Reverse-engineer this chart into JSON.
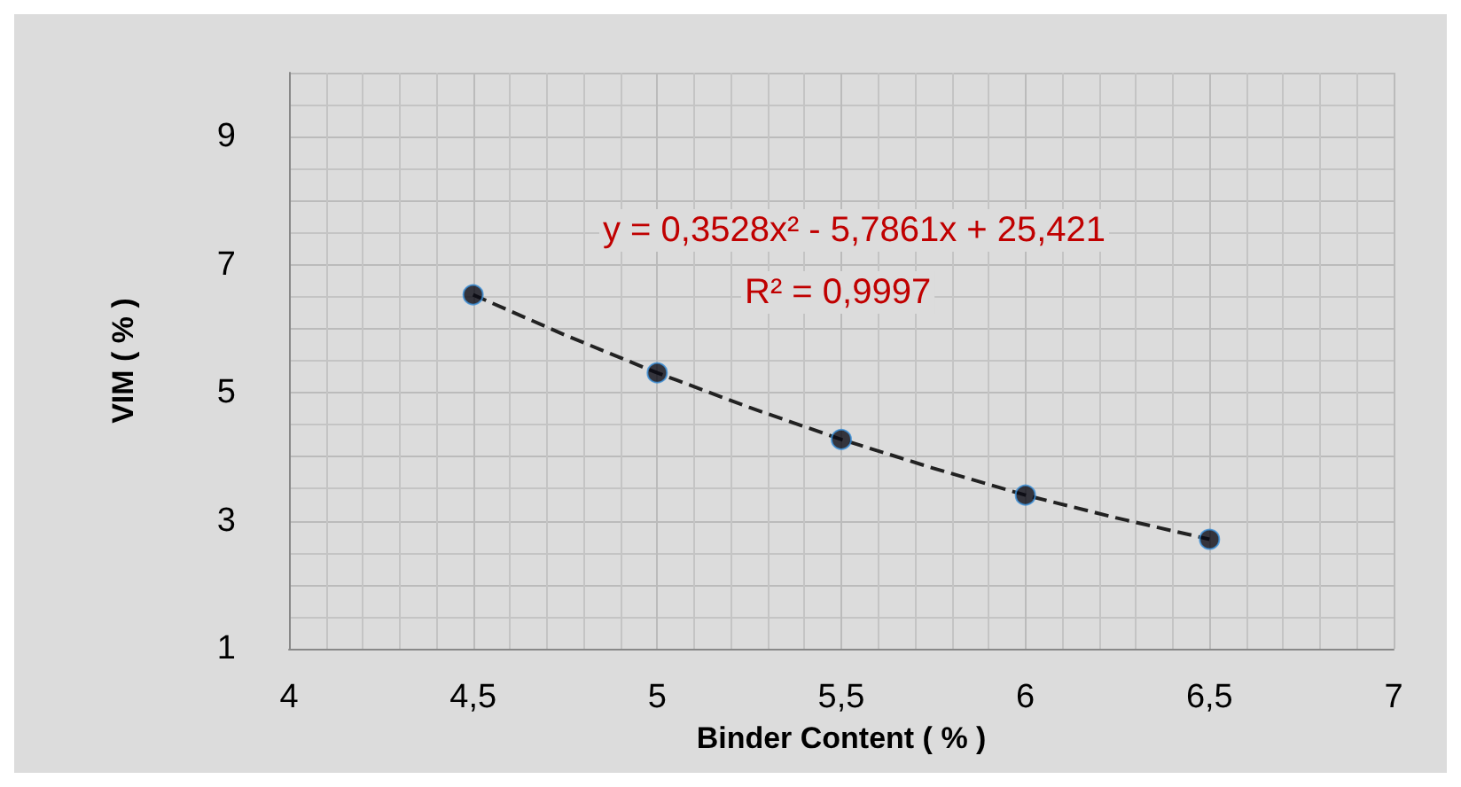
{
  "chart_data": {
    "type": "scatter",
    "xlabel": "Binder Content ( % )",
    "ylabel": "VIM ( % )",
    "xlim": [
      4,
      7
    ],
    "xticks": [
      4,
      {
        "value": 4.5,
        "label": "4,5"
      },
      5,
      {
        "value": 5.5,
        "label": "5,5"
      },
      6,
      {
        "value": 6.5,
        "label": "6,5"
      },
      7
    ],
    "ylim": [
      1,
      10
    ],
    "yticks": [
      1,
      3,
      5,
      7,
      9
    ],
    "grid": true,
    "marker": "circle",
    "annotations": [
      "y = 0,3528x² - 5,7861x + 25,421",
      "R² = 0,9997"
    ],
    "series": [
      {
        "color": "#0a0a14",
        "x": [
          4.5,
          5,
          5.5,
          6,
          6.5
        ],
        "values": [
          6.53,
          5.31,
          4.27,
          3.4,
          2.71
        ]
      },
      {
        "type": "line",
        "color": "#222222",
        "line_style": "dashed",
        "marker": "none",
        "x": [
          4.5,
          4.75,
          5,
          5.25,
          5.5,
          5.75,
          6,
          6.25,
          6.5
        ],
        "values": [
          6.53,
          5.9,
          5.31,
          4.77,
          4.27,
          3.82,
          3.4,
          3.04,
          2.71
        ]
      }
    ]
  }
}
